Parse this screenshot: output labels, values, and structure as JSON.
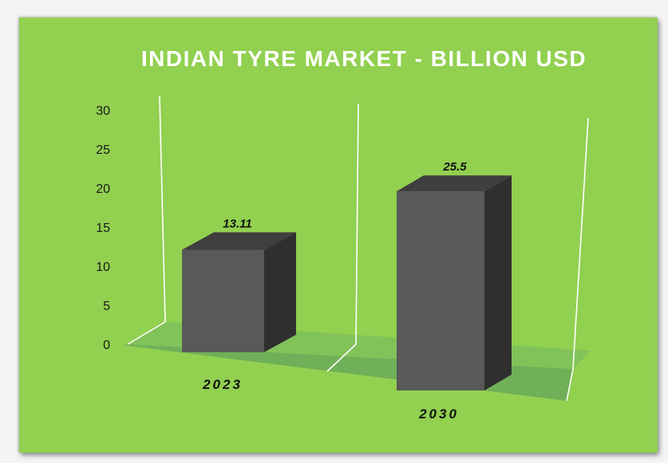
{
  "chart_data": {
    "type": "bar",
    "title": "INDIAN TYRE MARKET - BILLION USD",
    "categories": [
      "2023",
      "2030"
    ],
    "values": [
      13.11,
      25.5
    ],
    "data_labels": [
      "13.11",
      "25.5"
    ],
    "ylim": [
      0,
      30
    ],
    "yticks": [
      "0",
      "5",
      "10",
      "15",
      "20",
      "25",
      "30"
    ],
    "xlabel": "",
    "ylabel": "",
    "grid": false,
    "legend": "none",
    "colors": {
      "background": "#92d050",
      "floor": "#6fae58",
      "bar_front": "#595959",
      "bar_top": "#3f3f3f",
      "bar_side": "#2f2f2f",
      "title": "#ffffff",
      "wall_lines": "#ffffff"
    }
  }
}
